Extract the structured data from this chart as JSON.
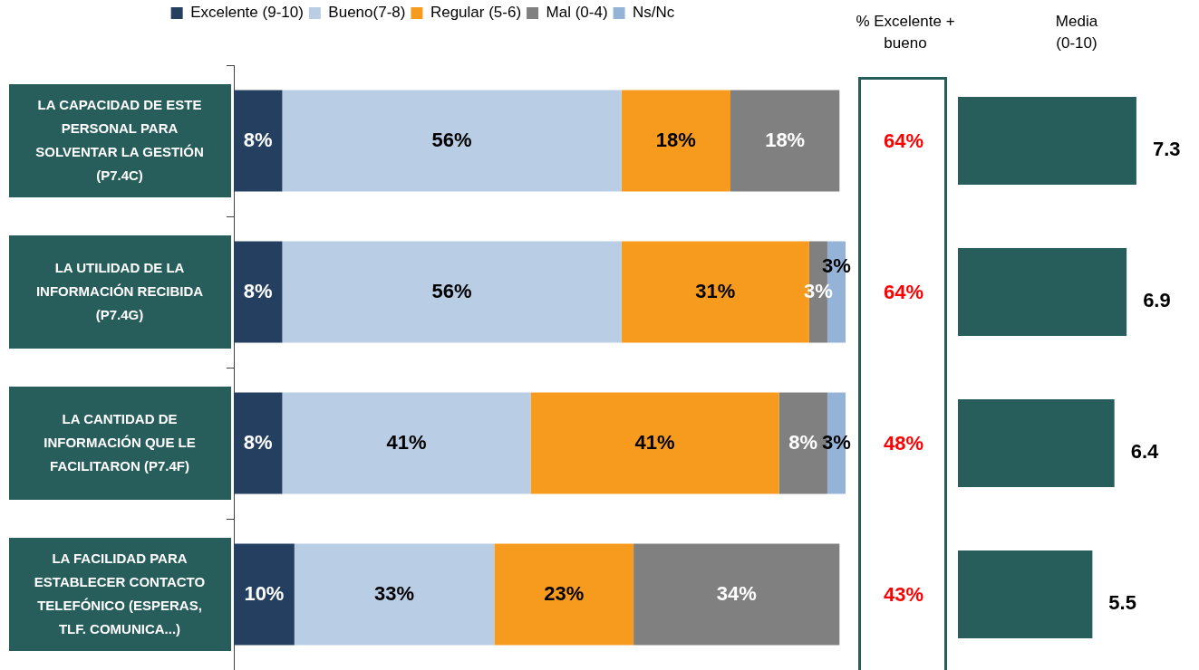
{
  "chart_data": [
    {
      "type": "bar",
      "orientation": "horizontal",
      "stacked": true,
      "legend": "top",
      "tick_labels": "y",
      "categories": [
        "LA CAPACIDAD DE ESTE PERSONAL PARA SOLVENTAR LA GESTIÓN (P7.4C)",
        "LA UTILIDAD DE LA INFORMACIÓN RECIBIDA (P7.4G)",
        "LA CANTIDAD DE INFORMACIÓN QUE LE FACILITARON (P7.4F)",
        "LA FACILIDAD PARA ESTABLECER CONTACTO TELEFÓNICO (ESPERAS, TLF. COMUNICA...)"
      ],
      "series": [
        {
          "name": "Excelente (9-10)",
          "color": "#243f60",
          "values": [
            8,
            8,
            8,
            10
          ],
          "value_labels": [
            "8%",
            "8%",
            "8%",
            "10%"
          ]
        },
        {
          "name": "Bueno(7-8)",
          "color": "#b9cde5",
          "values": [
            56,
            56,
            41,
            33
          ],
          "value_labels": [
            "56%",
            "56%",
            "41%",
            "33%"
          ]
        },
        {
          "name": "Regular (5-6)",
          "color": "#f79b1f",
          "values": [
            18,
            31,
            41,
            23
          ],
          "value_labels": [
            "18%",
            "31%",
            "41%",
            "23%"
          ]
        },
        {
          "name": "Mal (0-4)",
          "color": "#808080",
          "values": [
            18,
            3,
            8,
            34
          ],
          "value_labels": [
            "18%",
            "3%",
            "8%",
            "34%"
          ]
        },
        {
          "name": "Ns/Nc",
          "color": "#95b3d7",
          "values": [
            null,
            3,
            3,
            null
          ],
          "value_labels": [
            null,
            "3%",
            "3%",
            null
          ]
        }
      ]
    },
    {
      "type": "other",
      "title": "% Excelente + bueno",
      "annotations": [
        "64%",
        "64%",
        "48%",
        "43%"
      ]
    },
    {
      "type": "bar",
      "orientation": "horizontal",
      "title": "Media (0-10)",
      "categories": [
        null,
        null,
        null,
        null
      ],
      "values": [
        7.3,
        6.9,
        6.4,
        5.5
      ],
      "color": "#275d5b",
      "data_labels": true,
      "tick_labels": false
    }
  ]
}
